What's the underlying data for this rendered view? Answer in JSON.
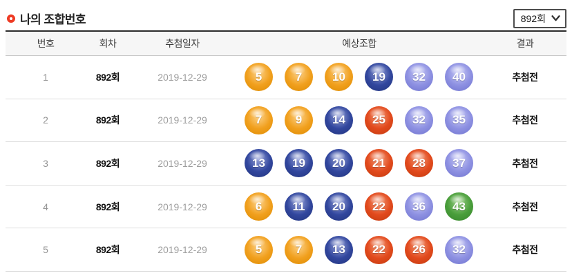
{
  "header": {
    "title": "나의 조합번호",
    "round_select_value": "892회"
  },
  "table": {
    "headers": {
      "no": "번호",
      "round": "회차",
      "date": "추첨일자",
      "combo": "예상조합",
      "result": "결과"
    },
    "rows": [
      {
        "no": "1",
        "round": "892회",
        "date": "2019-12-29",
        "numbers": [
          5,
          7,
          10,
          19,
          32,
          40
        ],
        "result": "추첨전"
      },
      {
        "no": "2",
        "round": "892회",
        "date": "2019-12-29",
        "numbers": [
          7,
          9,
          14,
          25,
          32,
          35
        ],
        "result": "추첨전"
      },
      {
        "no": "3",
        "round": "892회",
        "date": "2019-12-29",
        "numbers": [
          13,
          19,
          20,
          21,
          28,
          37
        ],
        "result": "추첨전"
      },
      {
        "no": "4",
        "round": "892회",
        "date": "2019-12-29",
        "numbers": [
          6,
          11,
          20,
          22,
          36,
          43
        ],
        "result": "추첨전"
      },
      {
        "no": "5",
        "round": "892회",
        "date": "2019-12-29",
        "numbers": [
          5,
          7,
          13,
          22,
          26,
          32
        ],
        "result": "추첨전"
      }
    ]
  },
  "ball_colors": {
    "range_1_10": {
      "light": "#fcd086",
      "base": "#f1a01e",
      "dark": "#dd8b02"
    },
    "range_11_20": {
      "light": "#96a2da",
      "base": "#32479e",
      "dark": "#22347e"
    },
    "range_21_30": {
      "light": "#f49c79",
      "base": "#e24a1d",
      "dark": "#c23a0e"
    },
    "range_31_40": {
      "light": "#c8caf6",
      "base": "#8e91e2",
      "dark": "#7074cf"
    },
    "range_41_45": {
      "light": "#9cd287",
      "base": "#4a9e3b",
      "dark": "#37862c"
    }
  },
  "accent": {
    "title_bullet": "#ee3b24"
  }
}
